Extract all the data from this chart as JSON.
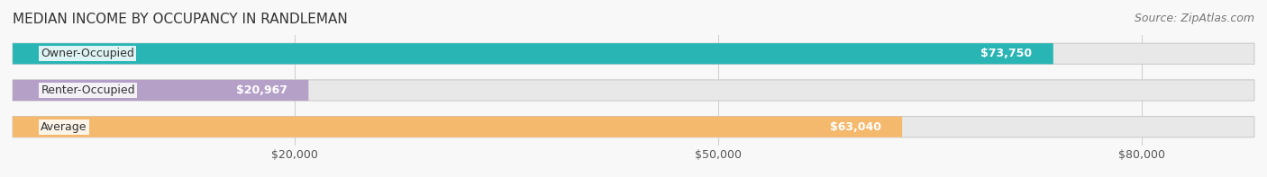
{
  "title": "MEDIAN INCOME BY OCCUPANCY IN RANDLEMAN",
  "source": "Source: ZipAtlas.com",
  "categories": [
    "Owner-Occupied",
    "Renter-Occupied",
    "Average"
  ],
  "values": [
    73750,
    20967,
    63040
  ],
  "bar_colors": [
    "#2ab5b5",
    "#b5a0c8",
    "#f5b96e"
  ],
  "bar_labels": [
    "$73,750",
    "$20,967",
    "$63,040"
  ],
  "xlim": [
    0,
    88000
  ],
  "xticks": [
    20000,
    50000,
    80000
  ],
  "xtick_labels": [
    "$20,000",
    "$50,000",
    "$80,000"
  ],
  "background_color": "#f0f0f0",
  "bar_bg_color": "#e8e8e8",
  "title_fontsize": 11,
  "source_fontsize": 9,
  "label_fontsize": 9,
  "tick_fontsize": 9,
  "bar_height": 0.55,
  "bar_label_color": "#ffffff",
  "category_label_color": "#555555"
}
